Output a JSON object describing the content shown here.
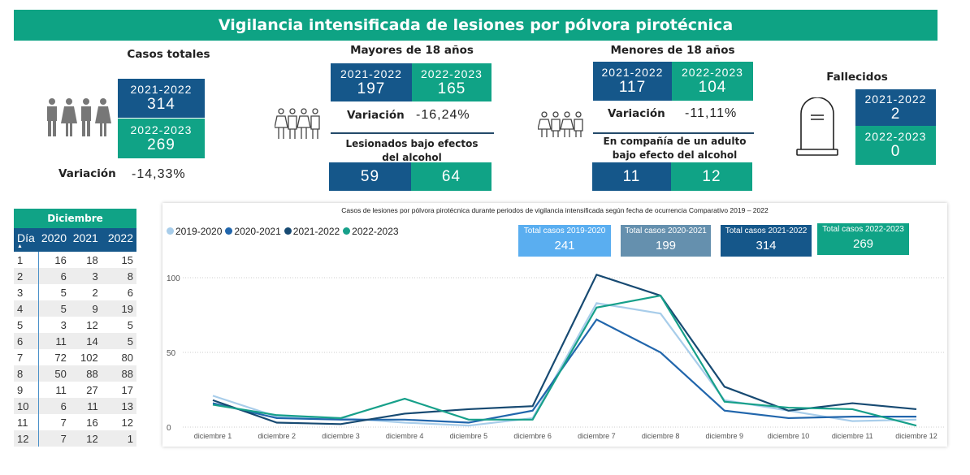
{
  "title": "Vigilancia intensificada de lesiones por pólvora pirotécnica",
  "colors": {
    "navy": "#15578a",
    "green": "#10a386"
  },
  "totales": {
    "title": "Casos totales",
    "a_label": "2021-2022",
    "a_value": "314",
    "b_label": "2022-2023",
    "b_value": "269",
    "var_label": "Variación",
    "var_value": "-14,33%",
    "icon": "people-icon"
  },
  "mayores": {
    "title": "Mayores de 18 años",
    "a_label": "2021-2022",
    "a_value": "197",
    "b_label": "2022-2023",
    "b_value": "165",
    "var_label": "Variación",
    "var_value": "-16,24%",
    "sub": "Lesionados bajo efectos del alcohol",
    "sub_a": "59",
    "sub_b": "64",
    "icon": "adults-icon"
  },
  "menores": {
    "title": "Menores de 18 años",
    "a_label": "2021-2022",
    "a_value": "117",
    "b_label": "2022-2023",
    "b_value": "104",
    "var_label": "Variación",
    "var_value": "-11,11%",
    "sub": "En compañía de un adulto bajo efecto del alcohol",
    "sub_a": "11",
    "sub_b": "12",
    "icon": "children-icon"
  },
  "fallecidos": {
    "title": "Fallecidos",
    "a_label": "2021-2022",
    "a_value": "2",
    "b_label": "2022-2023",
    "b_value": "0",
    "icon": "tombstone-icon"
  },
  "table": {
    "group": "Diciembre",
    "headers": [
      "Día",
      "2020",
      "2021",
      "2022"
    ],
    "rows": [
      [
        "1",
        "16",
        "18",
        "15"
      ],
      [
        "2",
        "6",
        "3",
        "8"
      ],
      [
        "3",
        "5",
        "2",
        "6"
      ],
      [
        "4",
        "5",
        "9",
        "19"
      ],
      [
        "5",
        "3",
        "12",
        "5"
      ],
      [
        "6",
        "11",
        "14",
        "5"
      ],
      [
        "7",
        "72",
        "102",
        "80"
      ],
      [
        "8",
        "50",
        "88",
        "88"
      ],
      [
        "9",
        "11",
        "27",
        "17"
      ],
      [
        "10",
        "6",
        "11",
        "13"
      ],
      [
        "11",
        "7",
        "16",
        "12"
      ],
      [
        "12",
        "7",
        "12",
        "1"
      ]
    ]
  },
  "totals": [
    {
      "label": "Total casos 2019-2020",
      "value": "241",
      "color": "#5aaef0"
    },
    {
      "label": "Total casos 2020-2021",
      "value": "199",
      "color": "#6590ae"
    },
    {
      "label": "Total casos 2021-2022",
      "value": "314",
      "color": "#15578a"
    },
    {
      "label": "Total casos 2022-2023",
      "value": "269",
      "color": "#10a386"
    }
  ],
  "chart_data": {
    "type": "line",
    "title": "Casos de lesiones por pólvora pirotécnica durante periodos de vigilancia intensificada según fecha de ocurrencia Comparativo 2019 – 2022",
    "categories": [
      "diciembre 1",
      "diciembre 2",
      "diciembre 3",
      "diciembre 4",
      "diciembre 5",
      "diciembre 6",
      "diciembre 7",
      "diciembre 8",
      "diciembre 9",
      "diciembre 10",
      "diciembre 11",
      "diciembre 12"
    ],
    "yticks": [
      0,
      50,
      100
    ],
    "ylim": [
      0,
      105
    ],
    "grid": true,
    "legend": "top-left",
    "series": [
      {
        "name": "2019-2020",
        "color": "#a8cdea",
        "values": [
          21,
          7,
          6,
          3,
          1,
          6,
          83,
          76,
          18,
          11,
          4,
          5
        ]
      },
      {
        "name": "2020-2021",
        "color": "#2166ac",
        "values": [
          16,
          6,
          5,
          5,
          3,
          11,
          72,
          50,
          11,
          6,
          7,
          7
        ]
      },
      {
        "name": "2021-2022",
        "color": "#174a72",
        "values": [
          18,
          3,
          2,
          9,
          12,
          14,
          102,
          88,
          27,
          11,
          16,
          12
        ]
      },
      {
        "name": "2022-2023",
        "color": "#17a08a",
        "values": [
          15,
          8,
          6,
          19,
          5,
          5,
          80,
          88,
          17,
          13,
          12,
          1
        ]
      }
    ]
  }
}
